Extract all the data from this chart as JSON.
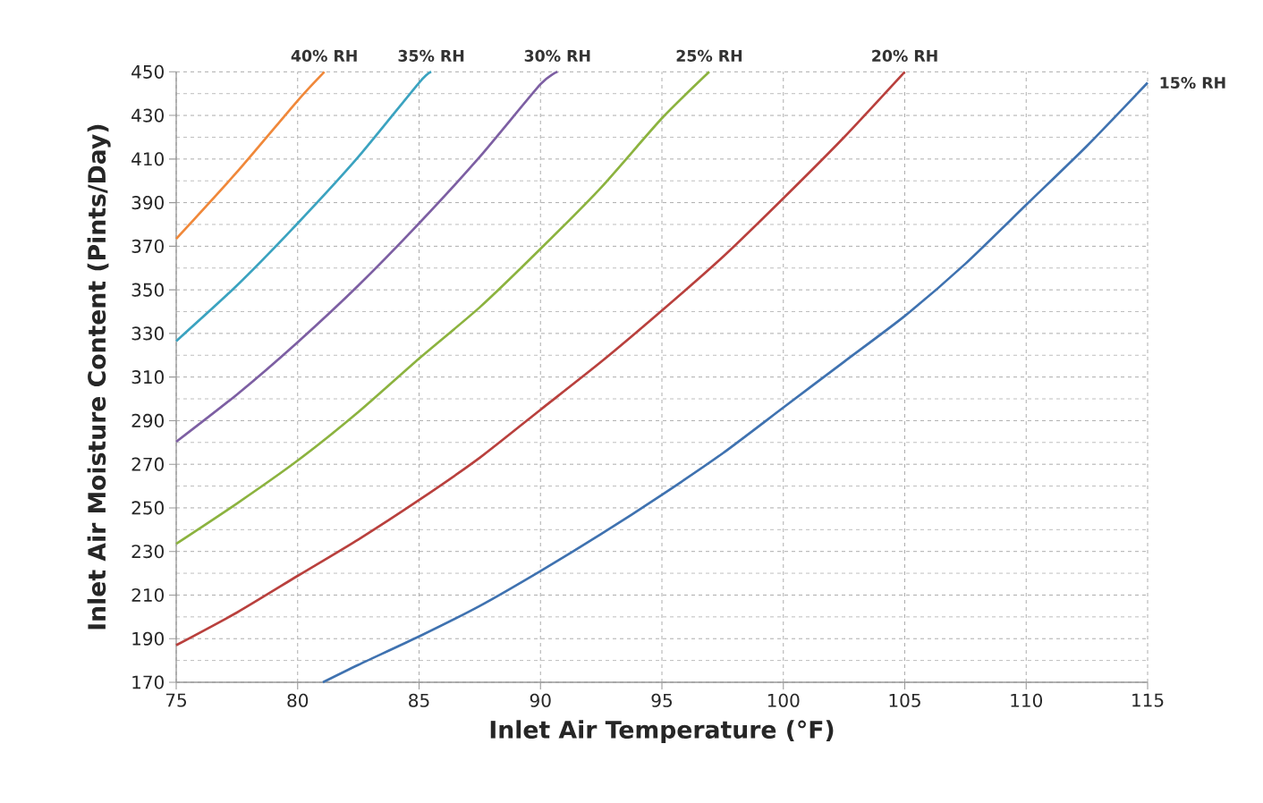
{
  "chart_data": {
    "type": "line",
    "xlabel": "Inlet Air Temperature (°F)",
    "ylabel": "Inlet Air Moisture Content (Pints/Day)",
    "xlim": [
      75,
      115
    ],
    "ylim": [
      170,
      450
    ],
    "xticks": [
      75,
      80,
      85,
      90,
      95,
      100,
      105,
      110,
      115
    ],
    "yticks": [
      170,
      190,
      210,
      230,
      250,
      270,
      290,
      310,
      330,
      350,
      370,
      390,
      410,
      430,
      450
    ],
    "grid": true,
    "line_style": "solid",
    "series": [
      {
        "name": "40% RH",
        "color": "#f0883a",
        "x": [
          75,
          77.5,
          80,
          81.1
        ],
        "values": [
          373.4,
          404,
          436.8,
          450
        ]
      },
      {
        "name": "35% RH",
        "color": "#3ba3c0",
        "x": [
          75,
          77.5,
          80,
          82.5,
          85,
          85.5
        ],
        "values": [
          326.5,
          352,
          380.5,
          411,
          445,
          450
        ]
      },
      {
        "name": "30% RH",
        "color": "#7d5fa3",
        "x": [
          75,
          77.5,
          80,
          82.5,
          85,
          87.5,
          90,
          90.7
        ],
        "values": [
          280.3,
          302,
          326,
          352,
          380.5,
          411,
          444.3,
          450
        ]
      },
      {
        "name": "25% RH",
        "color": "#8cb33f",
        "x": [
          75,
          77.5,
          80,
          82.5,
          85,
          87.5,
          90,
          92.5,
          95,
          96.95
        ],
        "values": [
          233.5,
          252,
          271.7,
          294,
          318.5,
          342,
          368.8,
          397,
          428.7,
          450
        ]
      },
      {
        "name": "20% RH",
        "color": "#b9403d",
        "x": [
          75,
          77.5,
          80,
          82.5,
          85,
          87.5,
          90,
          92.5,
          95,
          97.5,
          100,
          102.5,
          105
        ],
        "values": [
          187,
          202,
          218.8,
          235.5,
          253.6,
          273,
          295,
          317,
          340.5,
          365,
          392,
          420,
          450
        ]
      },
      {
        "name": "15% RH",
        "color": "#3f72b0",
        "x": [
          81.04,
          82.5,
          85,
          87.5,
          90,
          92.5,
          95,
          97.5,
          100,
          102.5,
          105,
          107.5,
          110,
          112.5,
          115
        ],
        "values": [
          170,
          178,
          191,
          205,
          221,
          238,
          256,
          275,
          296,
          317,
          338,
          362,
          389,
          416,
          445
        ]
      }
    ]
  }
}
